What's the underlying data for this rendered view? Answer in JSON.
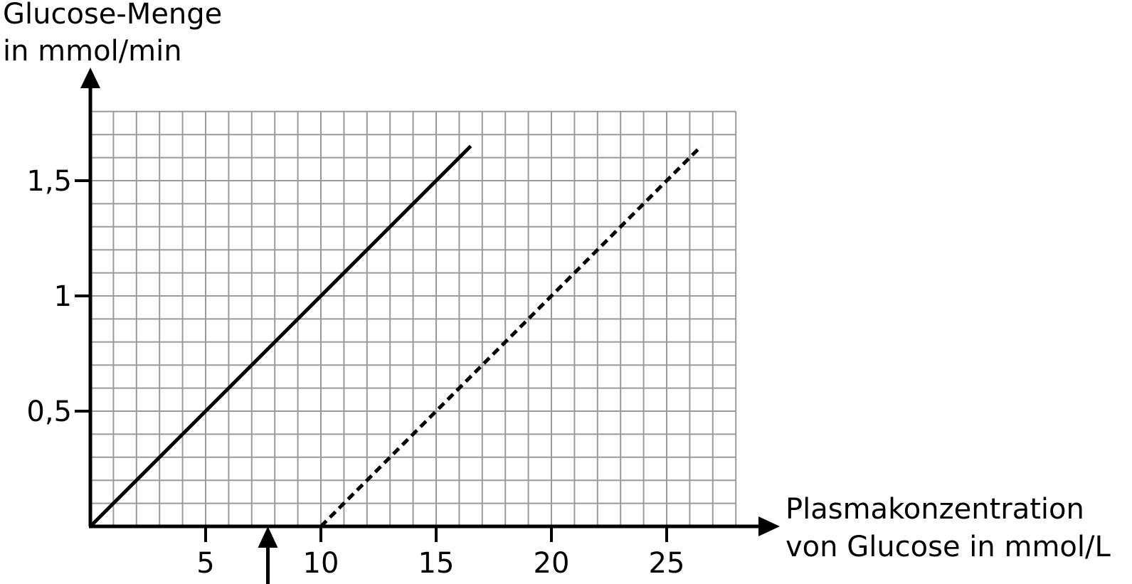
{
  "chart_data": {
    "type": "line",
    "ylabel_lines": [
      "Glucose-Menge",
      "in mmol/min"
    ],
    "xlabel_lines": [
      "Plasmakonzentration",
      "von Glucose in mmol/L"
    ],
    "x_ticks": [
      "5",
      "10",
      "15",
      "20",
      "25"
    ],
    "y_ticks": [
      "0,5",
      "1",
      "1,5"
    ],
    "x_tick_values": [
      5,
      10,
      15,
      20,
      25
    ],
    "y_tick_values": [
      0.5,
      1,
      1.5
    ],
    "xlim": [
      0,
      28
    ],
    "ylim": [
      0,
      1.8
    ],
    "grid": true,
    "grid_step_x": 1,
    "grid_step_y": 0.1,
    "series": [
      {
        "style": "solid",
        "x": [
          0,
          16.5
        ],
        "y": [
          0,
          1.65
        ]
      },
      {
        "style": "dashed",
        "x": [
          10,
          26.5
        ],
        "y": [
          0,
          1.65
        ]
      }
    ],
    "marker_arrow_x": 7.7
  }
}
